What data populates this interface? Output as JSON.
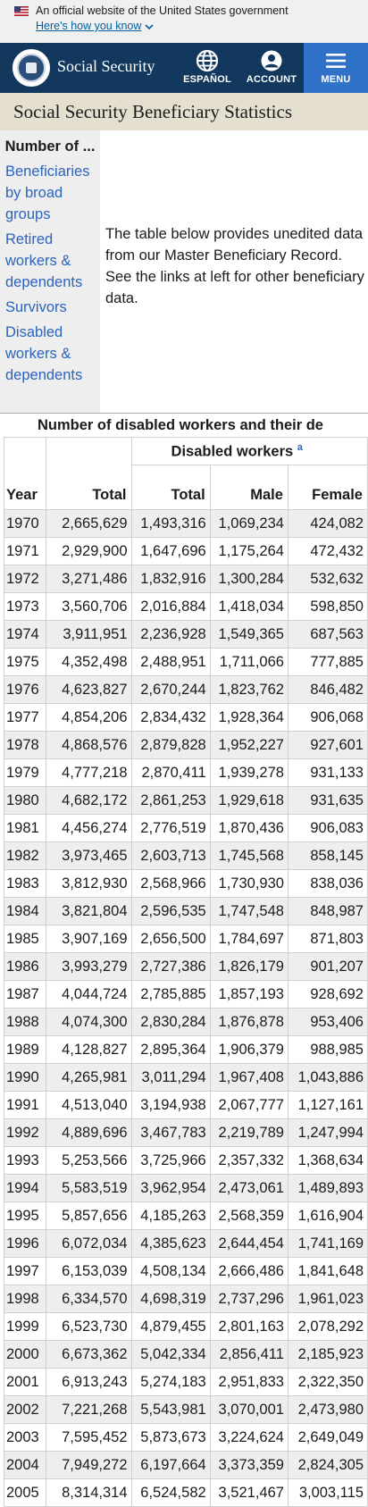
{
  "banner": {
    "official_text": "An official website of the United States government",
    "how_text": "Here's how you know"
  },
  "header": {
    "site_name": "Social Security",
    "espanol": "ESPAÑOL",
    "account": "ACCOUNT",
    "menu": "MENU",
    "colors": {
      "header_bg": "#12385e",
      "menu_bg": "#2f72c8"
    }
  },
  "page": {
    "title": "Social Security Beneficiary Statistics"
  },
  "sidenav": {
    "title": "Number of ...",
    "items": [
      {
        "label": "Beneficiaries by broad groups"
      },
      {
        "label": "Retired workers & dependents"
      },
      {
        "label": "Survivors"
      },
      {
        "label": "Disabled workers & dependents"
      }
    ]
  },
  "intro": "The table below provides unedited data from our Master Beneficiary Record. See the links at left for other beneficiary data.",
  "table": {
    "caption": "Number of disabled workers and their de",
    "group_header": "Disabled workers",
    "footnote_marker": "a",
    "columns": {
      "year": "Year",
      "total": "Total",
      "dw_total": "Total",
      "male": "Male",
      "female": "Female"
    },
    "rows": [
      [
        "1970",
        "2,665,629",
        "1,493,316",
        "1,069,234",
        "424,082"
      ],
      [
        "1971",
        "2,929,900",
        "1,647,696",
        "1,175,264",
        "472,432"
      ],
      [
        "1972",
        "3,271,486",
        "1,832,916",
        "1,300,284",
        "532,632"
      ],
      [
        "1973",
        "3,560,706",
        "2,016,884",
        "1,418,034",
        "598,850"
      ],
      [
        "1974",
        "3,911,951",
        "2,236,928",
        "1,549,365",
        "687,563"
      ],
      [
        "1975",
        "4,352,498",
        "2,488,951",
        "1,711,066",
        "777,885"
      ],
      [
        "1976",
        "4,623,827",
        "2,670,244",
        "1,823,762",
        "846,482"
      ],
      [
        "1977",
        "4,854,206",
        "2,834,432",
        "1,928,364",
        "906,068"
      ],
      [
        "1978",
        "4,868,576",
        "2,879,828",
        "1,952,227",
        "927,601"
      ],
      [
        "1979",
        "4,777,218",
        "2,870,411",
        "1,939,278",
        "931,133"
      ],
      [
        "1980",
        "4,682,172",
        "2,861,253",
        "1,929,618",
        "931,635"
      ],
      [
        "1981",
        "4,456,274",
        "2,776,519",
        "1,870,436",
        "906,083"
      ],
      [
        "1982",
        "3,973,465",
        "2,603,713",
        "1,745,568",
        "858,145"
      ],
      [
        "1983",
        "3,812,930",
        "2,568,966",
        "1,730,930",
        "838,036"
      ],
      [
        "1984",
        "3,821,804",
        "2,596,535",
        "1,747,548",
        "848,987"
      ],
      [
        "1985",
        "3,907,169",
        "2,656,500",
        "1,784,697",
        "871,803"
      ],
      [
        "1986",
        "3,993,279",
        "2,727,386",
        "1,826,179",
        "901,207"
      ],
      [
        "1987",
        "4,044,724",
        "2,785,885",
        "1,857,193",
        "928,692"
      ],
      [
        "1988",
        "4,074,300",
        "2,830,284",
        "1,876,878",
        "953,406"
      ],
      [
        "1989",
        "4,128,827",
        "2,895,364",
        "1,906,379",
        "988,985"
      ],
      [
        "1990",
        "4,265,981",
        "3,011,294",
        "1,967,408",
        "1,043,886"
      ],
      [
        "1991",
        "4,513,040",
        "3,194,938",
        "2,067,777",
        "1,127,161"
      ],
      [
        "1992",
        "4,889,696",
        "3,467,783",
        "2,219,789",
        "1,247,994"
      ],
      [
        "1993",
        "5,253,566",
        "3,725,966",
        "2,357,332",
        "1,368,634"
      ],
      [
        "1994",
        "5,583,519",
        "3,962,954",
        "2,473,061",
        "1,489,893"
      ],
      [
        "1995",
        "5,857,656",
        "4,185,263",
        "2,568,359",
        "1,616,904"
      ],
      [
        "1996",
        "6,072,034",
        "4,385,623",
        "2,644,454",
        "1,741,169"
      ],
      [
        "1997",
        "6,153,039",
        "4,508,134",
        "2,666,486",
        "1,841,648"
      ],
      [
        "1998",
        "6,334,570",
        "4,698,319",
        "2,737,296",
        "1,961,023"
      ],
      [
        "1999",
        "6,523,730",
        "4,879,455",
        "2,801,163",
        "2,078,292"
      ],
      [
        "2000",
        "6,673,362",
        "5,042,334",
        "2,856,411",
        "2,185,923"
      ],
      [
        "2001",
        "6,913,243",
        "5,274,183",
        "2,951,833",
        "2,322,350"
      ],
      [
        "2002",
        "7,221,268",
        "5,543,981",
        "3,070,001",
        "2,473,980"
      ],
      [
        "2003",
        "7,595,452",
        "5,873,673",
        "3,224,624",
        "2,649,049"
      ],
      [
        "2004",
        "7,949,272",
        "6,197,664",
        "3,373,359",
        "2,824,305"
      ],
      [
        "2005",
        "8,314,314",
        "6,524,582",
        "3,521,467",
        "3,003,115"
      ]
    ]
  }
}
